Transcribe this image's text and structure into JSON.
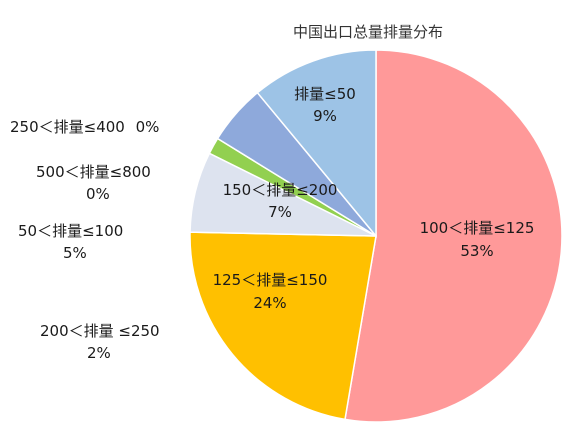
{
  "chart_data": {
    "type": "pie",
    "title": "中国出口总量排量分布",
    "slices": [
      {
        "label": "100＜排量≤125",
        "value": 53,
        "value_text": "53%",
        "color": "#ff9999"
      },
      {
        "label": "125＜排量≤150",
        "value": 24,
        "value_text": "24%",
        "color": "#ffc000"
      },
      {
        "label": "50＜排量≤100",
        "value": 5,
        "value_text": "5%",
        "color": "#ffc000"
      },
      {
        "label": "150＜排量≤200",
        "value": 7,
        "value_text": "7%",
        "color": "#dde3ef"
      },
      {
        "label": "200＜排量 ≤250",
        "value": 2,
        "value_text": "2%",
        "color": "#92d050"
      },
      {
        "label": "500＜排量≤800",
        "value": 0,
        "value_text": "0%",
        "color": "#92d050"
      },
      {
        "label": "250＜排量≤400",
        "value": 0,
        "value_text": "0%",
        "color": "#8ea9db"
      },
      {
        "label": "排量≤50",
        "value": 9,
        "value_text": "9%",
        "color": "#9dc3e6"
      }
    ]
  }
}
